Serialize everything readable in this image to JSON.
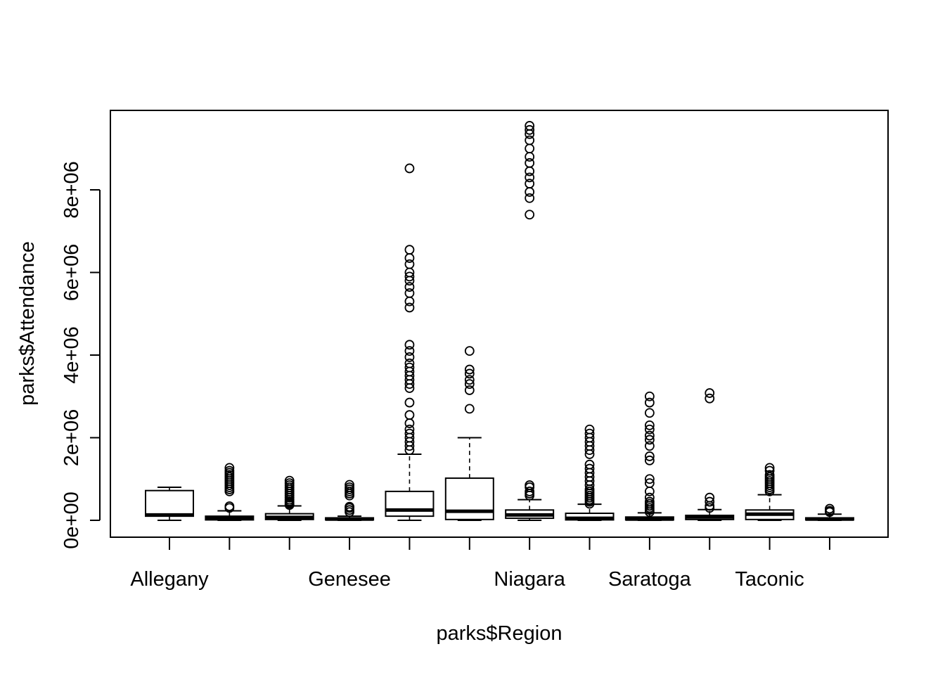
{
  "chart_data": {
    "type": "boxplot",
    "title": "",
    "xlabel": "parks$Region",
    "ylabel": "parks$Attendance",
    "ylim": [
      0,
      10000000
    ],
    "y_ticks": [
      {
        "value": 0,
        "label": "0e+00"
      },
      {
        "value": 2000000,
        "label": "2e+06"
      },
      {
        "value": 4000000,
        "label": "4e+06"
      },
      {
        "value": 6000000,
        "label": "6e+06"
      },
      {
        "value": 8000000,
        "label": "8e+06"
      }
    ],
    "x_tick_labels": [
      "Allegany",
      "",
      "",
      "Genesee",
      "",
      "",
      "Niagara",
      "",
      "Saratoga",
      "",
      "Taconic",
      ""
    ],
    "boxes": [
      {
        "label": "Allegany",
        "q1": 100000,
        "median": 130000,
        "q3": 720000,
        "whisker_low": 0,
        "whisker_high": 800000,
        "outliers": []
      },
      {
        "label": "",
        "q1": 10000,
        "median": 50000,
        "q3": 100000,
        "whisker_low": 0,
        "whisker_high": 230000,
        "outliers": [
          300000,
          340000,
          700000,
          750000,
          800000,
          850000,
          900000,
          950000,
          1000000,
          1050000,
          1100000,
          1150000,
          1200000,
          1270000
        ]
      },
      {
        "label": "",
        "q1": 20000,
        "median": 70000,
        "q3": 160000,
        "whisker_low": 0,
        "whisker_high": 350000,
        "outliers": [
          370000,
          400000,
          430000,
          460000,
          500000,
          550000,
          600000,
          650000,
          700000,
          750000,
          800000,
          850000,
          900000,
          960000
        ]
      },
      {
        "label": "Genesee",
        "q1": 10000,
        "median": 30000,
        "q3": 60000,
        "whisker_low": 0,
        "whisker_high": 100000,
        "outliers": [
          200000,
          250000,
          300000,
          330000,
          600000,
          650000,
          700000,
          750000,
          800000,
          860000
        ]
      },
      {
        "label": "",
        "q1": 100000,
        "median": 250000,
        "q3": 700000,
        "whisker_low": 0,
        "whisker_high": 1600000,
        "outliers": [
          1700000,
          1800000,
          1900000,
          2000000,
          2100000,
          2200000,
          2350000,
          2550000,
          2850000,
          3200000,
          3300000,
          3400000,
          3500000,
          3600000,
          3700000,
          3800000,
          3950000,
          4100000,
          4250000,
          5150000,
          5300000,
          5500000,
          5650000,
          5800000,
          5900000,
          6000000,
          6200000,
          6350000,
          6550000,
          8520000
        ]
      },
      {
        "label": "",
        "q1": 20000,
        "median": 220000,
        "q3": 1020000,
        "whisker_low": 0,
        "whisker_high": 2000000,
        "outliers": [
          2700000,
          3150000,
          3300000,
          3400000,
          3550000,
          3650000,
          4100000
        ]
      },
      {
        "label": "Niagara",
        "q1": 50000,
        "median": 130000,
        "q3": 250000,
        "whisker_low": 0,
        "whisker_high": 500000,
        "outliers": [
          600000,
          650000,
          700000,
          800000,
          850000,
          7400000,
          7800000,
          7950000,
          8150000,
          8300000,
          8450000,
          8650000,
          8800000,
          9000000,
          9200000,
          9350000,
          9450000,
          9550000
        ]
      },
      {
        "label": "",
        "q1": 10000,
        "median": 50000,
        "q3": 170000,
        "whisker_low": 0,
        "whisker_high": 390000,
        "outliers": [
          400000,
          450000,
          500000,
          550000,
          600000,
          650000,
          700000,
          750000,
          850000,
          950000,
          1050000,
          1150000,
          1250000,
          1350000,
          1600000,
          1700000,
          1800000,
          1900000,
          2000000,
          2100000,
          2200000
        ]
      },
      {
        "label": "Saratoga",
        "q1": 10000,
        "median": 30000,
        "q3": 80000,
        "whisker_low": 0,
        "whisker_high": 180000,
        "outliers": [
          200000,
          250000,
          300000,
          350000,
          400000,
          450000,
          550000,
          700000,
          900000,
          1000000,
          1450000,
          1550000,
          1800000,
          1950000,
          2050000,
          2200000,
          2300000,
          2600000,
          2850000,
          3000000
        ]
      },
      {
        "label": "",
        "q1": 20000,
        "median": 80000,
        "q3": 120000,
        "whisker_low": 0,
        "whisker_high": 260000,
        "outliers": [
          300000,
          350000,
          450000,
          550000,
          2950000,
          3080000
        ]
      },
      {
        "label": "Taconic",
        "q1": 20000,
        "median": 150000,
        "q3": 250000,
        "whisker_low": 0,
        "whisker_high": 620000,
        "outliers": [
          700000,
          750000,
          800000,
          850000,
          900000,
          950000,
          1000000,
          1050000,
          1100000,
          1200000,
          1270000
        ]
      },
      {
        "label": "",
        "q1": 10000,
        "median": 30000,
        "q3": 60000,
        "whisker_low": 0,
        "whisker_high": 150000,
        "outliers": [
          200000,
          230000,
          280000
        ]
      }
    ]
  }
}
